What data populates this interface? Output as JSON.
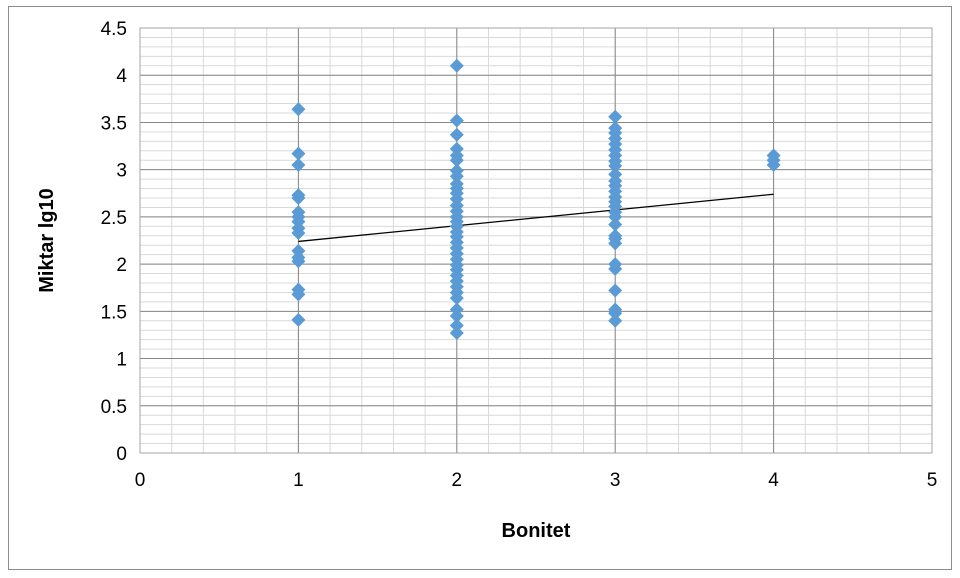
{
  "chart_data": {
    "type": "scatter",
    "title": "",
    "xlabel": "Bonitet",
    "ylabel": "Miktar lg10",
    "xlim": [
      0,
      5
    ],
    "ylim": [
      0,
      4.5
    ],
    "x_ticks": [
      0,
      1,
      2,
      3,
      4,
      5
    ],
    "y_ticks": [
      0,
      0.5,
      1,
      1.5,
      2,
      2.5,
      3,
      3.5,
      4,
      4.5
    ],
    "x_tick_labels": [
      "0",
      "1",
      "2",
      "3",
      "4",
      "5"
    ],
    "y_tick_labels": [
      "0",
      "0.5",
      "1",
      "1.5",
      "2",
      "2.5",
      "3",
      "3.5",
      "4",
      "4.5"
    ],
    "grid": true,
    "minor_grid": {
      "x_step": 0.2,
      "y_step": 0.1
    },
    "legend": "none",
    "marker": "diamond",
    "marker_color": "#5b9bd5",
    "series": [
      {
        "points": [
          [
            1,
            3.64
          ],
          [
            1,
            3.17
          ],
          [
            1,
            3.05
          ],
          [
            1,
            2.73
          ],
          [
            1,
            2.7
          ],
          [
            1,
            2.55
          ],
          [
            1,
            2.5
          ],
          [
            1,
            2.45
          ],
          [
            1,
            2.38
          ],
          [
            1,
            2.33
          ],
          [
            1,
            2.14
          ],
          [
            1,
            2.07
          ],
          [
            1,
            2.03
          ],
          [
            1,
            1.73
          ],
          [
            1,
            1.68
          ],
          [
            1,
            1.41
          ],
          [
            2,
            4.1
          ],
          [
            2,
            3.52
          ],
          [
            2,
            3.37
          ],
          [
            2,
            3.22
          ],
          [
            2,
            3.15
          ],
          [
            2,
            3.1
          ],
          [
            2,
            2.99
          ],
          [
            2,
            2.93
          ],
          [
            2,
            2.85
          ],
          [
            2,
            2.8
          ],
          [
            2,
            2.75
          ],
          [
            2,
            2.69
          ],
          [
            2,
            2.62
          ],
          [
            2,
            2.56
          ],
          [
            2,
            2.5
          ],
          [
            2,
            2.45
          ],
          [
            2,
            2.4
          ],
          [
            2,
            2.34
          ],
          [
            2,
            2.29
          ],
          [
            2,
            2.23
          ],
          [
            2,
            2.17
          ],
          [
            2,
            2.11
          ],
          [
            2,
            2.05
          ],
          [
            2,
            1.99
          ],
          [
            2,
            1.94
          ],
          [
            2,
            1.88
          ],
          [
            2,
            1.82
          ],
          [
            2,
            1.76
          ],
          [
            2,
            1.7
          ],
          [
            2,
            1.64
          ],
          [
            2,
            1.52
          ],
          [
            2,
            1.45
          ],
          [
            2,
            1.35
          ],
          [
            2,
            1.27
          ],
          [
            3,
            3.56
          ],
          [
            3,
            3.44
          ],
          [
            3,
            3.39
          ],
          [
            3,
            3.33
          ],
          [
            3,
            3.27
          ],
          [
            3,
            3.21
          ],
          [
            3,
            3.15
          ],
          [
            3,
            3.09
          ],
          [
            3,
            3.04
          ],
          [
            3,
            2.95
          ],
          [
            3,
            2.88
          ],
          [
            3,
            2.83
          ],
          [
            3,
            2.77
          ],
          [
            3,
            2.71
          ],
          [
            3,
            2.66
          ],
          [
            3,
            2.61
          ],
          [
            3,
            2.55
          ],
          [
            3,
            2.5
          ],
          [
            3,
            2.42
          ],
          [
            3,
            2.3
          ],
          [
            3,
            2.27
          ],
          [
            3,
            2.22
          ],
          [
            3,
            2.0
          ],
          [
            3,
            1.95
          ],
          [
            3,
            1.72
          ],
          [
            3,
            1.52
          ],
          [
            3,
            1.48
          ],
          [
            3,
            1.4
          ],
          [
            4,
            3.15
          ],
          [
            4,
            3.1
          ],
          [
            4,
            3.05
          ]
        ]
      }
    ],
    "trendline": {
      "type": "linear",
      "x": [
        1,
        4
      ],
      "y": [
        2.24,
        2.74
      ],
      "color": "#000000"
    }
  }
}
